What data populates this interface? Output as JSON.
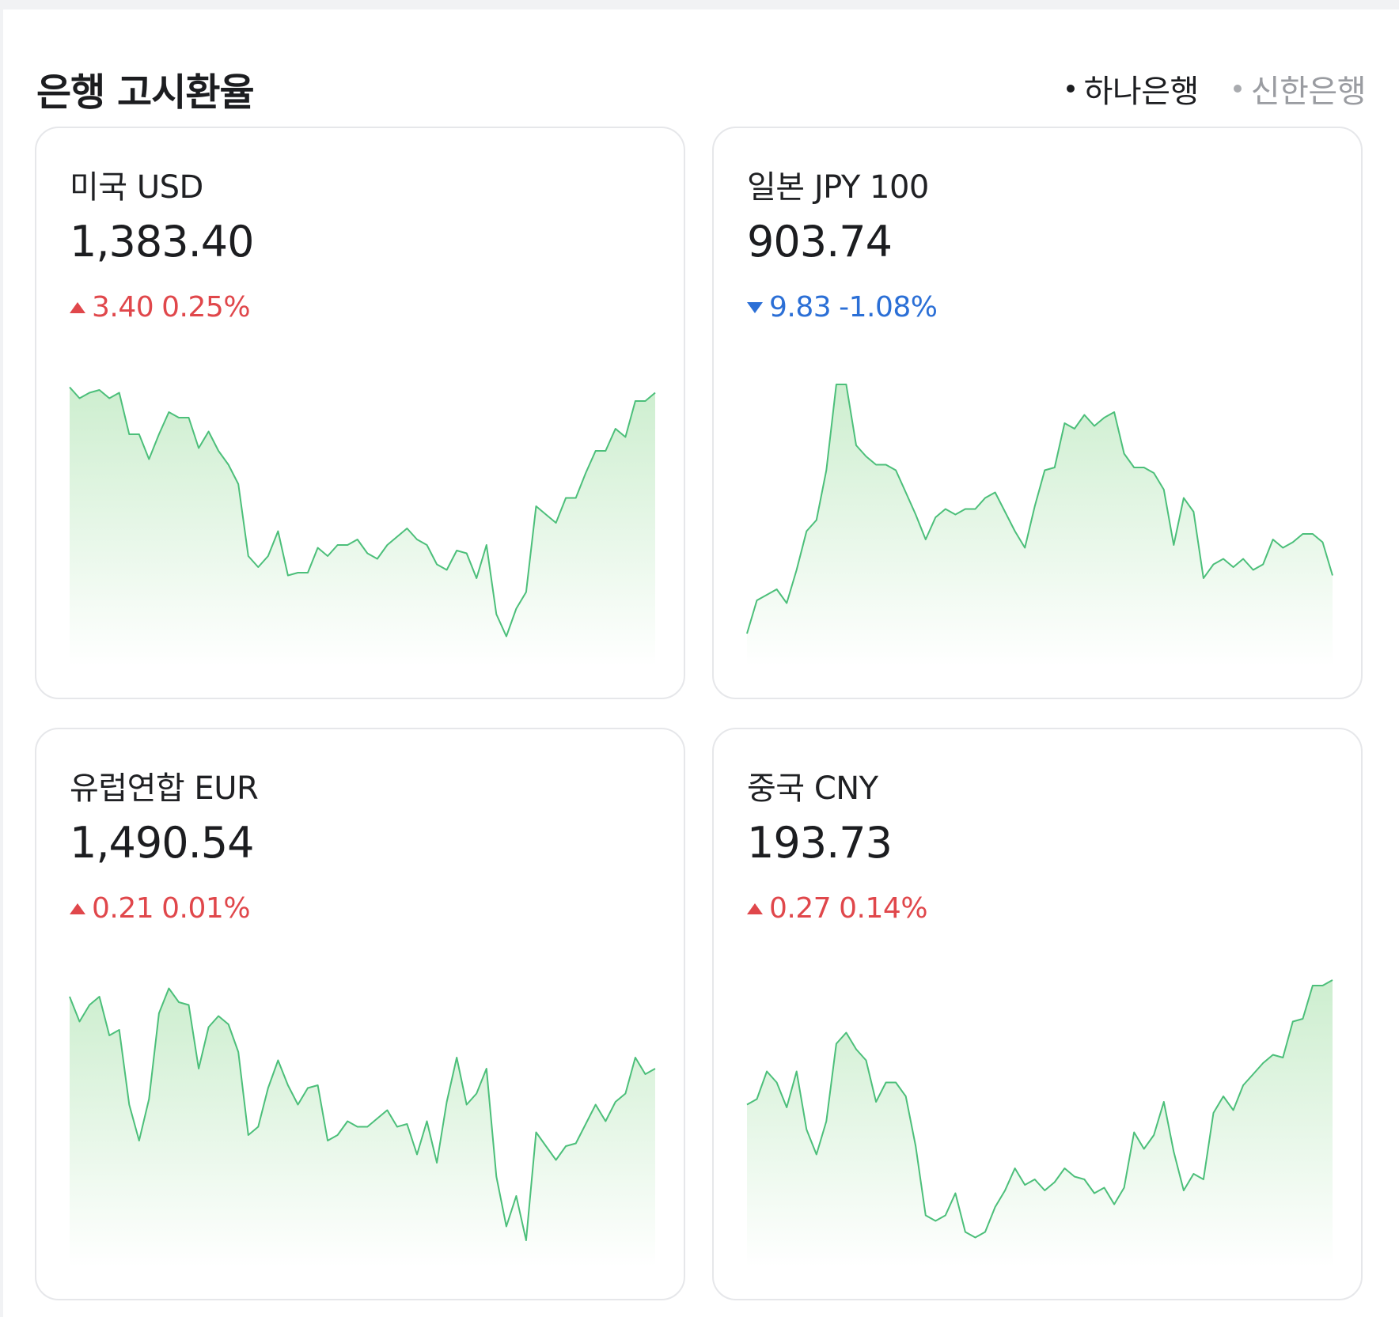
{
  "header": {
    "title": "은행 고시환율",
    "banks": [
      {
        "label": "하나은행",
        "active": true
      },
      {
        "label": "신한은행",
        "active": false
      }
    ]
  },
  "colors": {
    "up": "#e0474b",
    "down": "#2b6fd6",
    "spark_line": "#4cbf7a",
    "spark_fill_top": "#cdeecf",
    "spark_fill_bottom": "#ffffff"
  },
  "cards": [
    {
      "name": "미국 USD",
      "rate": "1,383.40",
      "direction": "up",
      "change": "3.40",
      "percent": "0.25%",
      "chart_data": {
        "type": "area",
        "values": [
          0.95,
          0.91,
          0.93,
          0.94,
          0.91,
          0.93,
          0.78,
          0.78,
          0.69,
          0.78,
          0.86,
          0.84,
          0.84,
          0.73,
          0.79,
          0.72,
          0.67,
          0.6,
          0.34,
          0.3,
          0.34,
          0.43,
          0.27,
          0.28,
          0.28,
          0.37,
          0.34,
          0.38,
          0.38,
          0.4,
          0.35,
          0.33,
          0.38,
          0.41,
          0.44,
          0.4,
          0.38,
          0.31,
          0.29,
          0.36,
          0.35,
          0.26,
          0.38,
          0.13,
          0.05,
          0.15,
          0.21,
          0.52,
          0.49,
          0.46,
          0.55,
          0.55,
          0.64,
          0.72,
          0.72,
          0.8,
          0.77,
          0.9,
          0.9,
          0.93
        ]
      }
    },
    {
      "name": "일본 JPY 100",
      "rate": "903.74",
      "direction": "down",
      "change": "9.83",
      "percent": "-1.08%",
      "chart_data": {
        "type": "area",
        "values": [
          0.06,
          0.18,
          0.2,
          0.22,
          0.17,
          0.29,
          0.43,
          0.47,
          0.65,
          0.96,
          0.96,
          0.74,
          0.7,
          0.67,
          0.67,
          0.65,
          0.57,
          0.49,
          0.4,
          0.48,
          0.51,
          0.49,
          0.51,
          0.51,
          0.55,
          0.57,
          0.5,
          0.43,
          0.37,
          0.52,
          0.65,
          0.66,
          0.82,
          0.8,
          0.85,
          0.81,
          0.84,
          0.86,
          0.71,
          0.66,
          0.66,
          0.64,
          0.58,
          0.38,
          0.55,
          0.5,
          0.26,
          0.31,
          0.33,
          0.3,
          0.33,
          0.29,
          0.31,
          0.4,
          0.37,
          0.39,
          0.42,
          0.42,
          0.39,
          0.27
        ]
      }
    },
    {
      "name": "유럽연합 EUR",
      "rate": "1,490.54",
      "direction": "up",
      "change": "0.21",
      "percent": "0.01%",
      "chart_data": {
        "type": "area",
        "values": [
          0.92,
          0.83,
          0.89,
          0.92,
          0.78,
          0.8,
          0.53,
          0.4,
          0.55,
          0.86,
          0.95,
          0.9,
          0.89,
          0.66,
          0.81,
          0.85,
          0.82,
          0.72,
          0.42,
          0.45,
          0.59,
          0.69,
          0.6,
          0.53,
          0.59,
          0.6,
          0.4,
          0.42,
          0.47,
          0.45,
          0.45,
          0.48,
          0.51,
          0.45,
          0.46,
          0.35,
          0.47,
          0.32,
          0.54,
          0.7,
          0.53,
          0.57,
          0.66,
          0.27,
          0.09,
          0.2,
          0.04,
          0.43,
          0.38,
          0.33,
          0.38,
          0.39,
          0.46,
          0.53,
          0.47,
          0.54,
          0.57,
          0.7,
          0.64,
          0.66
        ]
      }
    },
    {
      "name": "중국 CNY",
      "rate": "193.73",
      "direction": "up",
      "change": "0.27",
      "percent": "0.14%",
      "chart_data": {
        "type": "area",
        "values": [
          0.53,
          0.55,
          0.65,
          0.61,
          0.52,
          0.65,
          0.44,
          0.35,
          0.47,
          0.75,
          0.79,
          0.73,
          0.69,
          0.54,
          0.61,
          0.61,
          0.56,
          0.38,
          0.13,
          0.11,
          0.13,
          0.21,
          0.07,
          0.05,
          0.07,
          0.16,
          0.22,
          0.3,
          0.24,
          0.26,
          0.22,
          0.25,
          0.3,
          0.27,
          0.26,
          0.21,
          0.23,
          0.17,
          0.23,
          0.43,
          0.37,
          0.42,
          0.54,
          0.36,
          0.22,
          0.28,
          0.26,
          0.5,
          0.56,
          0.51,
          0.6,
          0.64,
          0.68,
          0.71,
          0.7,
          0.83,
          0.84,
          0.96,
          0.96,
          0.98
        ]
      }
    }
  ]
}
